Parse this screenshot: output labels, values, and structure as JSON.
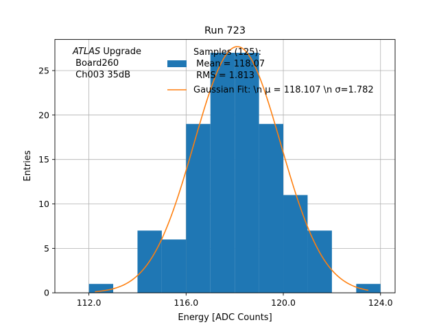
{
  "chart_data": {
    "type": "bar",
    "title": "Run 723",
    "xlabel": "Energy [ADC Counts]",
    "ylabel": "Entries",
    "xlim": [
      110.6,
      124.6
    ],
    "ylim": [
      0,
      28.5
    ],
    "xticks": [
      112,
      116,
      120,
      124
    ],
    "xtick_labels": [
      "112.0",
      "116.0",
      "120.0",
      "124.0"
    ],
    "yticks": [
      0,
      5,
      10,
      15,
      20,
      25
    ],
    "ytick_labels": [
      "0",
      "5",
      "10",
      "15",
      "20",
      "25"
    ],
    "grid": true,
    "colors": {
      "bars": "#1f77b4",
      "fit": "#ff7f0e"
    },
    "bins": [
      {
        "x0": 112,
        "x1": 113,
        "count": 1
      },
      {
        "x0": 113,
        "x1": 114,
        "count": 0
      },
      {
        "x0": 114,
        "x1": 115,
        "count": 7
      },
      {
        "x0": 115,
        "x1": 116,
        "count": 6
      },
      {
        "x0": 116,
        "x1": 117,
        "count": 19
      },
      {
        "x0": 117,
        "x1": 118,
        "count": 27
      },
      {
        "x0": 118,
        "x1": 119,
        "count": 27
      },
      {
        "x0": 119,
        "x1": 120,
        "count": 19
      },
      {
        "x0": 120,
        "x1": 121,
        "count": 11
      },
      {
        "x0": 121,
        "x1": 122,
        "count": 7
      },
      {
        "x0": 122,
        "x1": 123,
        "count": 0
      },
      {
        "x0": 123,
        "x1": 124,
        "count": 1
      }
    ],
    "fit": {
      "mu": 118.107,
      "sigma": 1.782,
      "amplitude": 27.7,
      "x_range": [
        112.25,
        123.5
      ]
    },
    "annotation": {
      "atlas": "ATLAS",
      "line1_rest": " Upgrade",
      "line2": " Board260",
      "line3": " Ch003 35dB"
    },
    "legend": {
      "placement": "top-right",
      "entries": [
        {
          "kind": "patch",
          "lines": [
            "Samples (125):",
            " Mean = 118.07",
            " RMS = 1.813"
          ]
        },
        {
          "kind": "line",
          "lines": [
            "Gaussian Fit: \\n μ = 118.107 \\n σ=1.782"
          ]
        }
      ]
    }
  }
}
